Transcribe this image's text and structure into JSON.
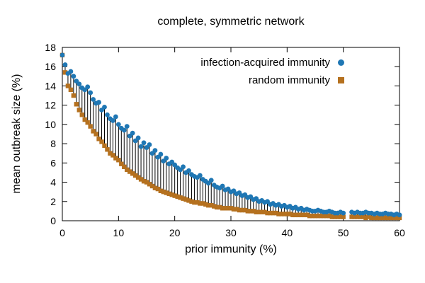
{
  "chart_data": {
    "type": "scatter",
    "title": "complete, symmetric network",
    "xlabel": "prior immunity (%)",
    "ylabel": "mean outbreak size (%)",
    "xlim": [
      0,
      60
    ],
    "ylim": [
      0,
      18
    ],
    "xticks": [
      0,
      10,
      20,
      30,
      40,
      50,
      60
    ],
    "yticks": [
      0,
      2,
      4,
      6,
      8,
      10,
      12,
      14,
      16,
      18
    ],
    "grid": false,
    "legend_position": "top-right-inside",
    "x_start": 0,
    "x_step": 0.5,
    "impulse_color": "#000000",
    "impulses_between": [
      "infection-acquired immunity",
      "random immunity"
    ],
    "series": [
      {
        "name": "infection-acquired immunity",
        "marker": "circle",
        "color": "#1f77b4",
        "values": [
          17.2,
          16.2,
          15.3,
          15.5,
          15.0,
          14.5,
          14.2,
          13.8,
          13.6,
          13.9,
          13.3,
          12.6,
          12.2,
          12.3,
          11.5,
          11.8,
          11.0,
          10.6,
          10.4,
          10.8,
          10.0,
          9.6,
          9.4,
          9.8,
          8.8,
          9.1,
          8.3,
          8.6,
          7.7,
          8.1,
          7.6,
          7.9,
          7.0,
          7.3,
          6.6,
          6.9,
          6.2,
          6.5,
          5.9,
          6.1,
          5.8,
          5.5,
          5.3,
          5.6,
          5.0,
          5.2,
          4.8,
          4.6,
          4.5,
          4.7,
          4.3,
          4.1,
          3.9,
          4.2,
          3.7,
          3.5,
          3.4,
          3.6,
          3.2,
          3.3,
          3.0,
          3.1,
          2.8,
          2.9,
          2.6,
          2.7,
          2.4,
          2.5,
          2.2,
          2.3,
          2.0,
          2.1,
          1.9,
          2.0,
          1.7,
          1.8,
          1.6,
          1.7,
          1.5,
          1.6,
          1.4,
          1.5,
          1.3,
          1.4,
          1.2,
          1.3,
          1.1,
          1.2,
          1.1,
          1.0,
          1.0,
          1.1,
          1.0,
          0.9,
          0.9,
          1.0,
          0.9,
          0.8,
          0.8,
          0.9,
          0.8,
          null,
          null,
          0.9,
          0.8,
          0.9,
          0.8,
          0.8,
          0.9,
          0.8,
          0.8,
          0.7,
          0.8,
          0.7,
          0.7,
          0.8,
          0.7,
          0.7,
          0.6,
          0.7,
          0.6
        ]
      },
      {
        "name": "random immunity",
        "marker": "square",
        "color": "#b5711f",
        "values": [
          17.2,
          15.4,
          14.0,
          13.6,
          13.0,
          12.1,
          11.5,
          11.0,
          10.5,
          10.2,
          9.8,
          9.3,
          9.0,
          8.5,
          8.2,
          7.8,
          7.4,
          7.0,
          6.8,
          6.5,
          6.3,
          5.9,
          5.6,
          5.3,
          5.1,
          4.9,
          4.7,
          4.5,
          4.3,
          4.1,
          4.0,
          3.8,
          3.6,
          3.4,
          3.3,
          3.1,
          3.0,
          2.9,
          2.8,
          2.7,
          2.6,
          2.5,
          2.4,
          2.3,
          2.2,
          2.1,
          2.0,
          1.9,
          1.9,
          1.8,
          1.8,
          1.7,
          1.6,
          1.6,
          1.5,
          1.4,
          1.4,
          1.3,
          1.3,
          1.3,
          1.3,
          1.2,
          1.2,
          1.1,
          1.1,
          1.1,
          1.0,
          1.0,
          1.0,
          0.9,
          0.9,
          0.9,
          0.9,
          0.8,
          0.8,
          0.8,
          0.8,
          0.7,
          0.7,
          0.7,
          0.7,
          0.7,
          0.6,
          0.6,
          0.6,
          0.6,
          0.6,
          0.6,
          0.5,
          0.5,
          0.5,
          0.5,
          0.5,
          0.5,
          0.5,
          0.5,
          0.4,
          0.4,
          0.4,
          0.4,
          0.4,
          null,
          null,
          0.4,
          0.4,
          0.4,
          0.4,
          0.4,
          0.3,
          0.4,
          0.3,
          0.3,
          0.3,
          0.3,
          0.3,
          0.3,
          0.3,
          0.3,
          0.3,
          0.3,
          0.3
        ]
      }
    ]
  },
  "colors": {
    "background": "#ffffff",
    "axis": "#000000",
    "series_blue": "#1f77b4",
    "series_brown": "#b5711f"
  }
}
